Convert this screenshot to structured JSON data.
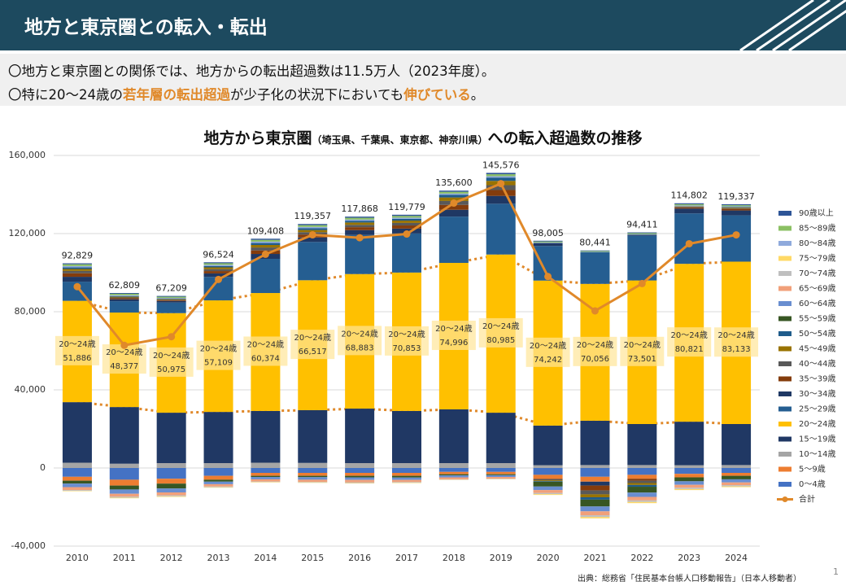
{
  "header": {
    "title": "地方と東京圏との転入・転出"
  },
  "bullets": {
    "line1": "〇地方と東京圏との関係では、地方からの転出超過数は11.5万人（2023年度）。",
    "line2": [
      "〇特に20～24歳の",
      "若年層の転出超過",
      "が少子化の状況下においても",
      "伸びている",
      "。"
    ]
  },
  "source": "出典：総務省「住民基本台帳人口移動報告」（日本人移動者）",
  "page_number": "1",
  "chart_data": {
    "type": "stacked_bar_line",
    "title": [
      "地方から東京圏",
      "（埼玉県、千葉県、東京都、神奈川県）",
      "への転入超過数の推移"
    ],
    "categories": [
      "2010",
      "2011",
      "2012",
      "2013",
      "2014",
      "2015",
      "2016",
      "2017",
      "2018",
      "2019",
      "2020",
      "2021",
      "2022",
      "2023",
      "2024"
    ],
    "ylim": [
      -40000,
      160000
    ],
    "yticks": [
      {
        "value": -40000,
        "label": "-40,000"
      },
      0,
      {
        "value": 40000,
        "label": "40,000"
      },
      {
        "value": 80000,
        "label": "80,000"
      },
      {
        "value": 120000,
        "label": "120,000"
      },
      {
        "value": 160000,
        "label": "160,000"
      }
    ],
    "series": [
      {
        "name": "0～4歳",
        "color": "#4472c4",
        "values": [
          -4500,
          -6000,
          -5500,
          -4000,
          -2500,
          -2500,
          -2500,
          -2500,
          -2000,
          -2000,
          -3500,
          -4500,
          -3500,
          -3000,
          -2500
        ]
      },
      {
        "name": "5～9歳",
        "color": "#ed7d31",
        "values": [
          -2000,
          -3000,
          -2500,
          -2000,
          -1500,
          -1500,
          -1500,
          -1500,
          -1200,
          -1200,
          -2000,
          -2500,
          -2000,
          -1800,
          -1500
        ]
      },
      {
        "name": "10～14歳",
        "color": "#a5a5a5",
        "values": [
          2700,
          2200,
          2500,
          2500,
          2700,
          2600,
          2500,
          2500,
          2500,
          2500,
          1400,
          1500,
          1500,
          1400,
          1500
        ]
      },
      {
        "name": "15～19歳",
        "color": "#203864",
        "values": [
          31000,
          29000,
          25800,
          26200,
          26500,
          27000,
          27900,
          26700,
          27500,
          25800,
          20300,
          22700,
          21000,
          22300,
          21000
        ]
      },
      {
        "name": "20～24歳",
        "color": "#ffc000",
        "values": [
          51886,
          48377,
          50975,
          57109,
          60374,
          66517,
          68883,
          70853,
          74996,
          80985,
          74242,
          70056,
          73501,
          80821,
          83133
        ],
        "value_labels": [
          "51,886",
          "48,377",
          "50,975",
          "57,109",
          "60,374",
          "66,517",
          "68,883",
          "70,853",
          "74,996",
          "80,985",
          "74,242",
          "70,056",
          "73,501",
          "80,821",
          "83,133"
        ]
      },
      {
        "name": "25～29歳",
        "color": "#255e91",
        "values": [
          9800,
          5800,
          5400,
          12000,
          17500,
          19600,
          20000,
          20000,
          23700,
          26000,
          17700,
          16200,
          22900,
          25800,
          23700
        ]
      },
      {
        "name": "30～34歳",
        "color": "#1f3864",
        "values": [
          2500,
          1000,
          800,
          1800,
          2500,
          2300,
          2500,
          2500,
          3500,
          4000,
          1500,
          -2000,
          500,
          2500,
          2500
        ]
      },
      {
        "name": "35～39歳",
        "color": "#843c0c",
        "values": [
          1800,
          500,
          400,
          1200,
          1800,
          1500,
          1500,
          1600,
          2500,
          3000,
          -300,
          -2500,
          -1000,
          600,
          800
        ]
      },
      {
        "name": "40～44歳",
        "color": "#595959",
        "values": [
          1200,
          400,
          300,
          1000,
          1500,
          1200,
          1200,
          1300,
          2000,
          2500,
          -500,
          -2000,
          -1200,
          300,
          400
        ]
      },
      {
        "name": "45～49歳",
        "color": "#997300",
        "values": [
          1000,
          400,
          300,
          900,
          1300,
          1100,
          1200,
          1200,
          1800,
          2200,
          -400,
          -1500,
          -1000,
          200,
          300
        ]
      },
      {
        "name": "50～54歳",
        "color": "#1f5c8b",
        "values": [
          800,
          300,
          200,
          700,
          1000,
          900,
          900,
          900,
          1400,
          1700,
          -300,
          -1200,
          -900,
          100,
          200
        ]
      },
      {
        "name": "55～59歳",
        "color": "#375623",
        "values": [
          -1500,
          -2000,
          -2500,
          -1000,
          -600,
          -700,
          -800,
          -900,
          -600,
          -500,
          -2500,
          -3500,
          -3000,
          -2000,
          -1800
        ]
      },
      {
        "name": "60～64歳",
        "color": "#698ed0",
        "values": [
          -1800,
          -2200,
          -2000,
          -1300,
          -1200,
          -1300,
          -1300,
          -1200,
          -1000,
          -900,
          -1800,
          -2500,
          -2200,
          -1800,
          -1600
        ]
      },
      {
        "name": "65～69歳",
        "color": "#f1a07a",
        "values": [
          -1500,
          -1500,
          -1500,
          -1200,
          -1100,
          -1100,
          -1200,
          -1100,
          -1000,
          -900,
          -1500,
          -2000,
          -1800,
          -1500,
          -1400
        ]
      },
      {
        "name": "70～74歳",
        "color": "#bfbfbf",
        "values": [
          -400,
          -500,
          -500,
          -400,
          -300,
          -300,
          -400,
          -300,
          -200,
          -200,
          -600,
          -900,
          -800,
          -700,
          -600
        ]
      },
      {
        "name": "75～79歳",
        "color": "#ffd966",
        "values": [
          -200,
          -300,
          -300,
          -200,
          -200,
          -200,
          -200,
          -200,
          -100,
          -100,
          -400,
          -700,
          -600,
          -500,
          -400
        ]
      },
      {
        "name": "80～84歳",
        "color": "#8faadc",
        "values": [
          700,
          500,
          400,
          600,
          700,
          700,
          600,
          600,
          600,
          700,
          300,
          200,
          300,
          400,
          400
        ]
      },
      {
        "name": "85～89歳",
        "color": "#8bc063",
        "values": [
          900,
          700,
          600,
          800,
          900,
          900,
          900,
          900,
          900,
          1000,
          500,
          400,
          500,
          600,
          600
        ]
      },
      {
        "name": "90歳以上",
        "color": "#2e5597",
        "values": [
          500,
          400,
          400,
          500,
          600,
          600,
          600,
          600,
          600,
          700,
          400,
          300,
          400,
          500,
          500
        ]
      },
      {
        "name": "合計",
        "type": "line",
        "color": "#e0892a",
        "values": [
          92829,
          62809,
          67209,
          96524,
          109408,
          119357,
          117868,
          119779,
          135600,
          145576,
          98005,
          80441,
          94411,
          114802,
          119337
        ],
        "value_labels": [
          "92,829",
          "62,809",
          "67,209",
          "96,524",
          "109,408",
          "119,357",
          "117,868",
          "119,779",
          "135,600",
          "145,576",
          "98,005",
          "80,441",
          "94,411",
          "114,802",
          "119,337"
        ]
      }
    ]
  }
}
